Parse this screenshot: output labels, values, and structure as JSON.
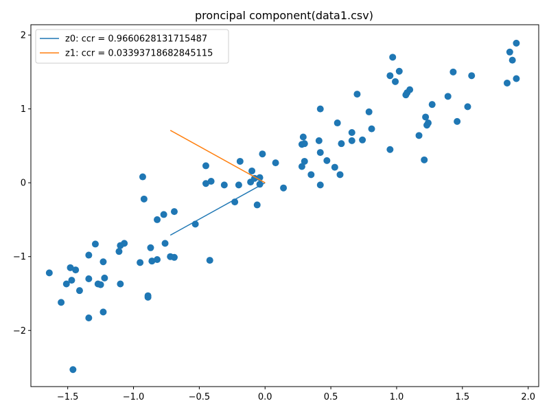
{
  "chart_data": {
    "type": "scatter",
    "title": "proncipal component(data1.csv)",
    "xlabel": "",
    "ylabel": "",
    "xlim": [
      -1.78,
      2.08
    ],
    "ylim": [
      -2.76,
      2.14
    ],
    "xticks": [
      -1.5,
      -1.0,
      -0.5,
      0.0,
      0.5,
      1.0,
      1.5,
      2.0
    ],
    "xtick_labels": [
      "−1.5",
      "−1.0",
      "−0.5",
      "0.0",
      "0.5",
      "1.0",
      "1.5",
      "2.0"
    ],
    "yticks": [
      -2,
      -1,
      0,
      1,
      2
    ],
    "ytick_labels": [
      "−2",
      "−1",
      "0",
      "1",
      "2"
    ],
    "grid": false,
    "legend_position": "top-left",
    "scatter_color": "#1f77b4",
    "points": [
      [
        -1.64,
        -1.22
      ],
      [
        -1.55,
        -1.62
      ],
      [
        -1.51,
        -1.37
      ],
      [
        -1.48,
        -1.15
      ],
      [
        -1.47,
        -1.32
      ],
      [
        -1.46,
        -2.53
      ],
      [
        -1.44,
        -1.18
      ],
      [
        -1.41,
        -1.46
      ],
      [
        -1.34,
        -0.98
      ],
      [
        -1.34,
        -1.3
      ],
      [
        -1.34,
        -1.83
      ],
      [
        -1.29,
        -0.83
      ],
      [
        -1.27,
        -1.37
      ],
      [
        -1.25,
        -1.38
      ],
      [
        -1.23,
        -1.07
      ],
      [
        -1.23,
        -1.75
      ],
      [
        -1.22,
        -1.29
      ],
      [
        -1.11,
        -0.93
      ],
      [
        -1.1,
        -0.85
      ],
      [
        -1.1,
        -1.37
      ],
      [
        -1.07,
        -0.82
      ],
      [
        -0.95,
        -1.08
      ],
      [
        -0.93,
        0.08
      ],
      [
        -0.92,
        -0.22
      ],
      [
        -0.89,
        -1.53
      ],
      [
        -0.89,
        -1.55
      ],
      [
        -0.87,
        -0.88
      ],
      [
        -0.86,
        -1.06
      ],
      [
        -0.82,
        -0.5
      ],
      [
        -0.82,
        -1.04
      ],
      [
        -0.77,
        -0.43
      ],
      [
        -0.76,
        -0.82
      ],
      [
        -0.72,
        -1.0
      ],
      [
        -0.69,
        -0.39
      ],
      [
        -0.69,
        -1.01
      ],
      [
        -0.53,
        -0.56
      ],
      [
        -0.45,
        0.23
      ],
      [
        -0.45,
        -0.01
      ],
      [
        -0.42,
        -1.05
      ],
      [
        -0.41,
        0.02
      ],
      [
        -0.31,
        -0.03
      ],
      [
        -0.23,
        -0.26
      ],
      [
        -0.2,
        -0.03
      ],
      [
        -0.19,
        0.29
      ],
      [
        -0.11,
        0.01
      ],
      [
        -0.1,
        0.16
      ],
      [
        -0.08,
        0.06
      ],
      [
        -0.06,
        -0.3
      ],
      [
        -0.04,
        0.07
      ],
      [
        -0.04,
        -0.02
      ],
      [
        -0.02,
        0.39
      ],
      [
        0.08,
        0.27
      ],
      [
        0.14,
        -0.07
      ],
      [
        0.28,
        0.22
      ],
      [
        0.28,
        0.52
      ],
      [
        0.29,
        0.62
      ],
      [
        0.3,
        0.29
      ],
      [
        0.3,
        0.53
      ],
      [
        0.35,
        0.11
      ],
      [
        0.41,
        0.57
      ],
      [
        0.42,
        1.0
      ],
      [
        0.42,
        0.41
      ],
      [
        0.42,
        -0.03
      ],
      [
        0.47,
        0.3
      ],
      [
        0.53,
        0.21
      ],
      [
        0.55,
        0.81
      ],
      [
        0.57,
        0.11
      ],
      [
        0.58,
        0.53
      ],
      [
        0.66,
        0.68
      ],
      [
        0.66,
        0.57
      ],
      [
        0.7,
        1.2
      ],
      [
        0.74,
        0.58
      ],
      [
        0.79,
        0.96
      ],
      [
        0.81,
        0.73
      ],
      [
        0.95,
        1.45
      ],
      [
        0.95,
        0.45
      ],
      [
        0.97,
        1.7
      ],
      [
        0.99,
        1.37
      ],
      [
        1.02,
        1.51
      ],
      [
        1.07,
        1.19
      ],
      [
        1.08,
        1.22
      ],
      [
        1.1,
        1.26
      ],
      [
        1.17,
        0.64
      ],
      [
        1.21,
        0.31
      ],
      [
        1.22,
        0.89
      ],
      [
        1.23,
        0.78
      ],
      [
        1.24,
        0.81
      ],
      [
        1.27,
        1.06
      ],
      [
        1.39,
        1.17
      ],
      [
        1.43,
        1.5
      ],
      [
        1.46,
        0.83
      ],
      [
        1.54,
        1.03
      ],
      [
        1.57,
        1.45
      ],
      [
        1.84,
        1.35
      ],
      [
        1.86,
        1.77
      ],
      [
        1.88,
        1.66
      ],
      [
        1.91,
        1.89
      ],
      [
        1.91,
        1.41
      ]
    ],
    "series": [
      {
        "name": "z0: ccr = 0.9660628131715487",
        "color": "#1f77b4",
        "x": [
          -0.72,
          0.0
        ],
        "y": [
          -0.71,
          0.0
        ]
      },
      {
        "name": "z1: ccr = 0.03393718682845115",
        "color": "#ff7f0e",
        "x": [
          -0.72,
          0.0
        ],
        "y": [
          0.71,
          0.0
        ]
      }
    ]
  }
}
